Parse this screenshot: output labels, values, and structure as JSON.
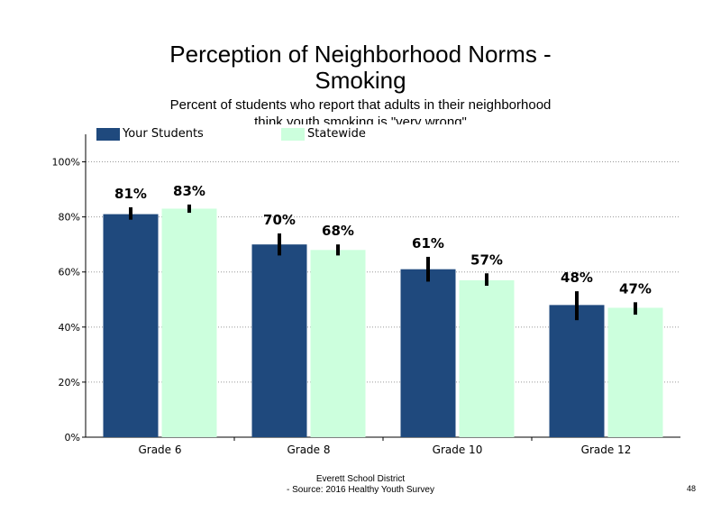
{
  "chart_data": {
    "type": "bar",
    "title": "Perception of Neighborhood Norms -",
    "title_line2": "Smoking",
    "subtitle": "Percent of students who report that adults in their neighborhood",
    "subtitle_line2": "think youth smoking is \"very wrong\"",
    "categories": [
      "Grade 6",
      "Grade 8",
      "Grade 10",
      "Grade 12"
    ],
    "series": [
      {
        "name": "Your Students",
        "color": "#1f497d",
        "values": [
          81,
          70,
          61,
          48
        ],
        "labels": [
          "81%",
          "70%",
          "61%",
          "48%"
        ],
        "error": [
          [
            79,
            83.5
          ],
          [
            66,
            74
          ],
          [
            56.5,
            65.5
          ],
          [
            42.5,
            53
          ]
        ]
      },
      {
        "name": "Statewide",
        "color": "#ccffdd",
        "values": [
          83,
          68,
          57,
          47
        ],
        "labels": [
          "83%",
          "68%",
          "57%",
          "47%"
        ],
        "error": [
          [
            81.5,
            84.5
          ],
          [
            66,
            70
          ],
          [
            55,
            59.5
          ],
          [
            44.5,
            49
          ]
        ]
      }
    ],
    "ylim": [
      0,
      110
    ],
    "yticks": [
      0,
      20,
      40,
      60,
      80,
      100
    ],
    "ytick_labels": [
      "0%",
      "20%",
      "40%",
      "60%",
      "80%",
      "100%"
    ],
    "grid": true,
    "legend_position": "top-left"
  },
  "footer": {
    "line1": "Everett School District",
    "line2": "- Source: 2016 Healthy  Youth Survey",
    "page": "48"
  }
}
